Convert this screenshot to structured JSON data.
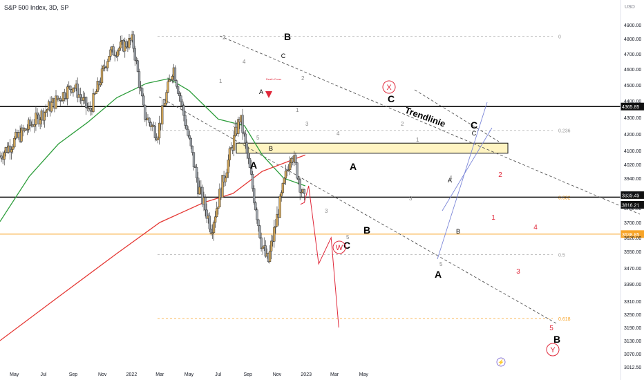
{
  "header": {
    "symbol_title": "S&P 500 Index, 3D, SP"
  },
  "colors": {
    "bull": "#d4a85a",
    "bear": "#9ea4ab",
    "ma_green": "#2e9e3c",
    "ma_red": "#e53935",
    "hline": "#111111",
    "orange": "#f7a428",
    "wave_red": "#e0283a",
    "channel_blue": "#7b86d8",
    "dashed": "#555555",
    "fib": "#999999"
  },
  "chart_data": {
    "type": "candlestick",
    "title": "S&P 500 Index, 3D, SP",
    "price_unit": "USD",
    "y_ticks": [
      "4900.00",
      "4800.00",
      "4700.00",
      "4600.00",
      "4500.00",
      "4400.00",
      "4300.00",
      "4200.00",
      "4100.00",
      "4020.00",
      "3940.00",
      "3860.00",
      "3780.00",
      "3700.00",
      "3620.00",
      "3550.00",
      "3470.00",
      "3390.00",
      "3310.00",
      "3250.00",
      "3190.00",
      "3130.00",
      "3070.00",
      "3012.50"
    ],
    "x_ticks": [
      "May",
      "Jul",
      "Sep",
      "Nov",
      "2022",
      "Mar",
      "May",
      "Jul",
      "Sep",
      "Nov",
      "2023",
      "Mar",
      "May"
    ],
    "price_labels": [
      {
        "text": "4365.85",
        "value": 4365.85,
        "style": "black"
      },
      {
        "text": "3839.49",
        "value": 3839.49,
        "style": "black"
      },
      {
        "text": "3816.21",
        "value": 3816.21,
        "style": "black"
      },
      {
        "text": "3638.85",
        "value": 3638.85,
        "style": "orange"
      }
    ],
    "fib_levels": [
      {
        "label": "0",
        "value": 4818
      },
      {
        "label": "0.236",
        "value": 4222
      },
      {
        "label": "0.382",
        "value": 3839.49
      },
      {
        "label": "0.5",
        "value": 3535
      },
      {
        "label": "0.618",
        "value": 3231
      }
    ],
    "horizontal_lines": [
      {
        "value": 4365.85,
        "color": "black"
      },
      {
        "value": 3839.49,
        "color": "black"
      },
      {
        "value": 3638.85,
        "color": "orange"
      }
    ],
    "support_zone": {
      "low": 4085,
      "high": 4145
    },
    "annotations": [
      {
        "text": "B",
        "kind": "wave"
      },
      {
        "text": "C",
        "kind": "wave"
      },
      {
        "text": "A",
        "kind": "wave"
      },
      {
        "text": "A",
        "kind": "wave"
      },
      {
        "text": "B",
        "kind": "wave"
      },
      {
        "text": "C",
        "kind": "wave"
      },
      {
        "text": "A",
        "kind": "wave"
      },
      {
        "text": "B",
        "kind": "wave"
      },
      {
        "text": "C",
        "kind": "wave"
      },
      {
        "text": "A",
        "kind": "wave"
      },
      {
        "text": "B",
        "kind": "wave"
      },
      {
        "text": "C",
        "kind": "wave"
      },
      {
        "text": "A",
        "kind": "wave"
      },
      {
        "text": "B",
        "kind": "wave"
      },
      {
        "text": "C",
        "kind": "wave"
      },
      {
        "text": "X",
        "kind": "circled"
      },
      {
        "text": "W",
        "kind": "circled"
      },
      {
        "text": "Y",
        "kind": "circled"
      },
      {
        "text": "Trendlinie",
        "kind": "label"
      },
      {
        "text": "Death Cross",
        "kind": "tiny"
      },
      {
        "text": "1",
        "kind": "count"
      },
      {
        "text": "2",
        "kind": "count"
      },
      {
        "text": "3",
        "kind": "count"
      },
      {
        "text": "4",
        "kind": "count"
      },
      {
        "text": "5",
        "kind": "count"
      }
    ],
    "projection_path": [
      {
        "label": "1",
        "date": "2022-12-28",
        "value": 3810
      },
      {
        "label": "2",
        "date": "2023-01-06",
        "value": 3900
      },
      {
        "label": "3",
        "date": "2023-01-27",
        "value": 3490
      },
      {
        "label": "4",
        "date": "2023-02-22",
        "value": 3620
      },
      {
        "label": "5",
        "date": "2023-03-10",
        "value": 3190
      }
    ],
    "moving_averages": [
      {
        "period": "short",
        "color": "green",
        "start_value": 3705,
        "mid_value": 4440,
        "end_value": 3900
      },
      {
        "period": "long",
        "color": "red",
        "start_value": 3130,
        "end_value": 4075
      }
    ],
    "ohlc_sampled": [
      {
        "date": "2021-04-01",
        "value": 4070
      },
      {
        "date": "2021-05-15",
        "value": 4200
      },
      {
        "date": "2021-07-01",
        "value": 4330
      },
      {
        "date": "2021-09-01",
        "value": 4500
      },
      {
        "date": "2021-10-05",
        "value": 4330
      },
      {
        "date": "2021-11-15",
        "value": 4700
      },
      {
        "date": "2022-01-03",
        "value": 4790
      },
      {
        "date": "2022-01-27",
        "value": 4320
      },
      {
        "date": "2022-02-24",
        "value": 4200
      },
      {
        "date": "2022-03-29",
        "value": 4620
      },
      {
        "date": "2022-05-20",
        "value": 3900
      },
      {
        "date": "2022-06-17",
        "value": 3670
      },
      {
        "date": "2022-08-16",
        "value": 4305
      },
      {
        "date": "2022-09-30",
        "value": 3585
      },
      {
        "date": "2022-10-13",
        "value": 3490
      },
      {
        "date": "2022-12-01",
        "value": 4100
      },
      {
        "date": "2022-12-28",
        "value": 3816.21
      }
    ]
  },
  "footer": {
    "lightning_icon": "lightning-icon"
  }
}
